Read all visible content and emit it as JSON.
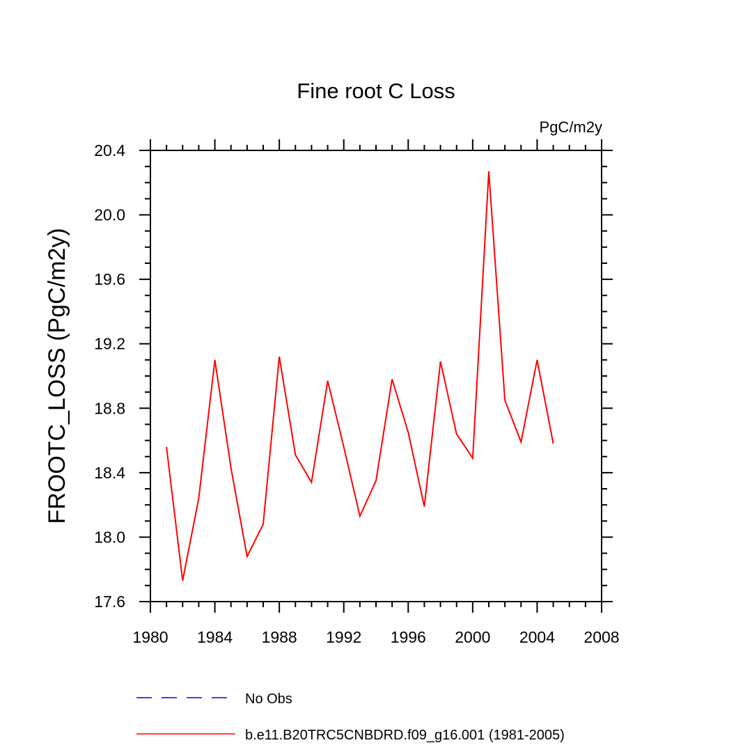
{
  "chart_data": {
    "type": "line",
    "title": "Fine root C Loss",
    "units": "PgC/m2y",
    "xlabel": "",
    "ylabel": "FROOTC_LOSS  (PgC/m2y)",
    "xlim": [
      1980,
      2008
    ],
    "ylim": [
      17.6,
      20.4
    ],
    "x_ticks": [
      "1980",
      "1984",
      "1988",
      "1992",
      "1996",
      "2000",
      "2004",
      "2008"
    ],
    "y_ticks": [
      "17.6",
      "18.0",
      "18.4",
      "18.8",
      "19.2",
      "19.6",
      "20.0",
      "20.4"
    ],
    "grid": false,
    "legend_placement": "bottom",
    "series": [
      {
        "name": "No Obs",
        "color": "#0000ff",
        "dash": "dashed",
        "x": [],
        "y": []
      },
      {
        "name": "b.e11.B20TRC5CNBDRD.f09_g16.001 (1981-2005)",
        "color": "#ff0000",
        "dash": "solid",
        "x": [
          1981,
          1982,
          1983,
          1984,
          1985,
          1986,
          1987,
          1988,
          1989,
          1990,
          1991,
          1992,
          1993,
          1994,
          1995,
          1996,
          1997,
          1998,
          1999,
          2000,
          2001,
          2002,
          2003,
          2004,
          2005
        ],
        "y": [
          18.56,
          17.73,
          18.24,
          19.1,
          18.43,
          17.88,
          18.08,
          19.12,
          18.51,
          18.34,
          18.97,
          18.56,
          18.13,
          18.35,
          18.98,
          18.65,
          18.19,
          19.09,
          18.64,
          18.49,
          20.27,
          18.85,
          18.59,
          19.1,
          18.58
        ]
      }
    ]
  }
}
